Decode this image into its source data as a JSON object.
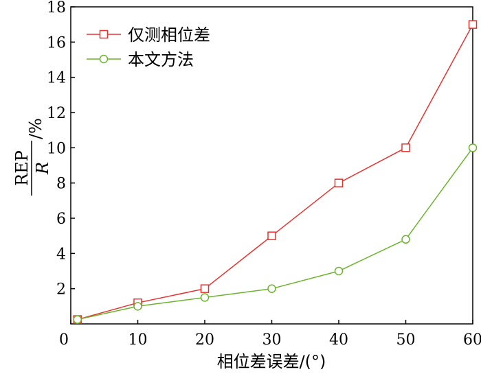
{
  "chart_data": {
    "type": "line",
    "title": "",
    "xlabel": "相位差误差/(°)",
    "ylabel": {
      "numerator": "REP",
      "denominator": "R",
      "suffix": "/%"
    },
    "xlim": [
      0,
      60
    ],
    "ylim": [
      0,
      18
    ],
    "x_ticks": [
      0,
      10,
      20,
      30,
      40,
      50,
      60
    ],
    "y_ticks": [
      2,
      4,
      6,
      8,
      10,
      12,
      14,
      16,
      18
    ],
    "grid": false,
    "legend_position": "top-left",
    "series": [
      {
        "name": "仅测相位差",
        "color": "#e8312e",
        "marker": "square",
        "x": [
          1,
          10,
          20,
          30,
          40,
          50,
          60
        ],
        "y": [
          0.25,
          1.2,
          2.0,
          5.0,
          8.0,
          10.0,
          17.0
        ]
      },
      {
        "name": "本文方法",
        "color": "#6ab42d",
        "marker": "circle",
        "x": [
          1,
          10,
          20,
          30,
          40,
          50,
          60
        ],
        "y": [
          0.25,
          1.0,
          1.5,
          2.0,
          3.0,
          4.8,
          10.0
        ]
      }
    ]
  }
}
